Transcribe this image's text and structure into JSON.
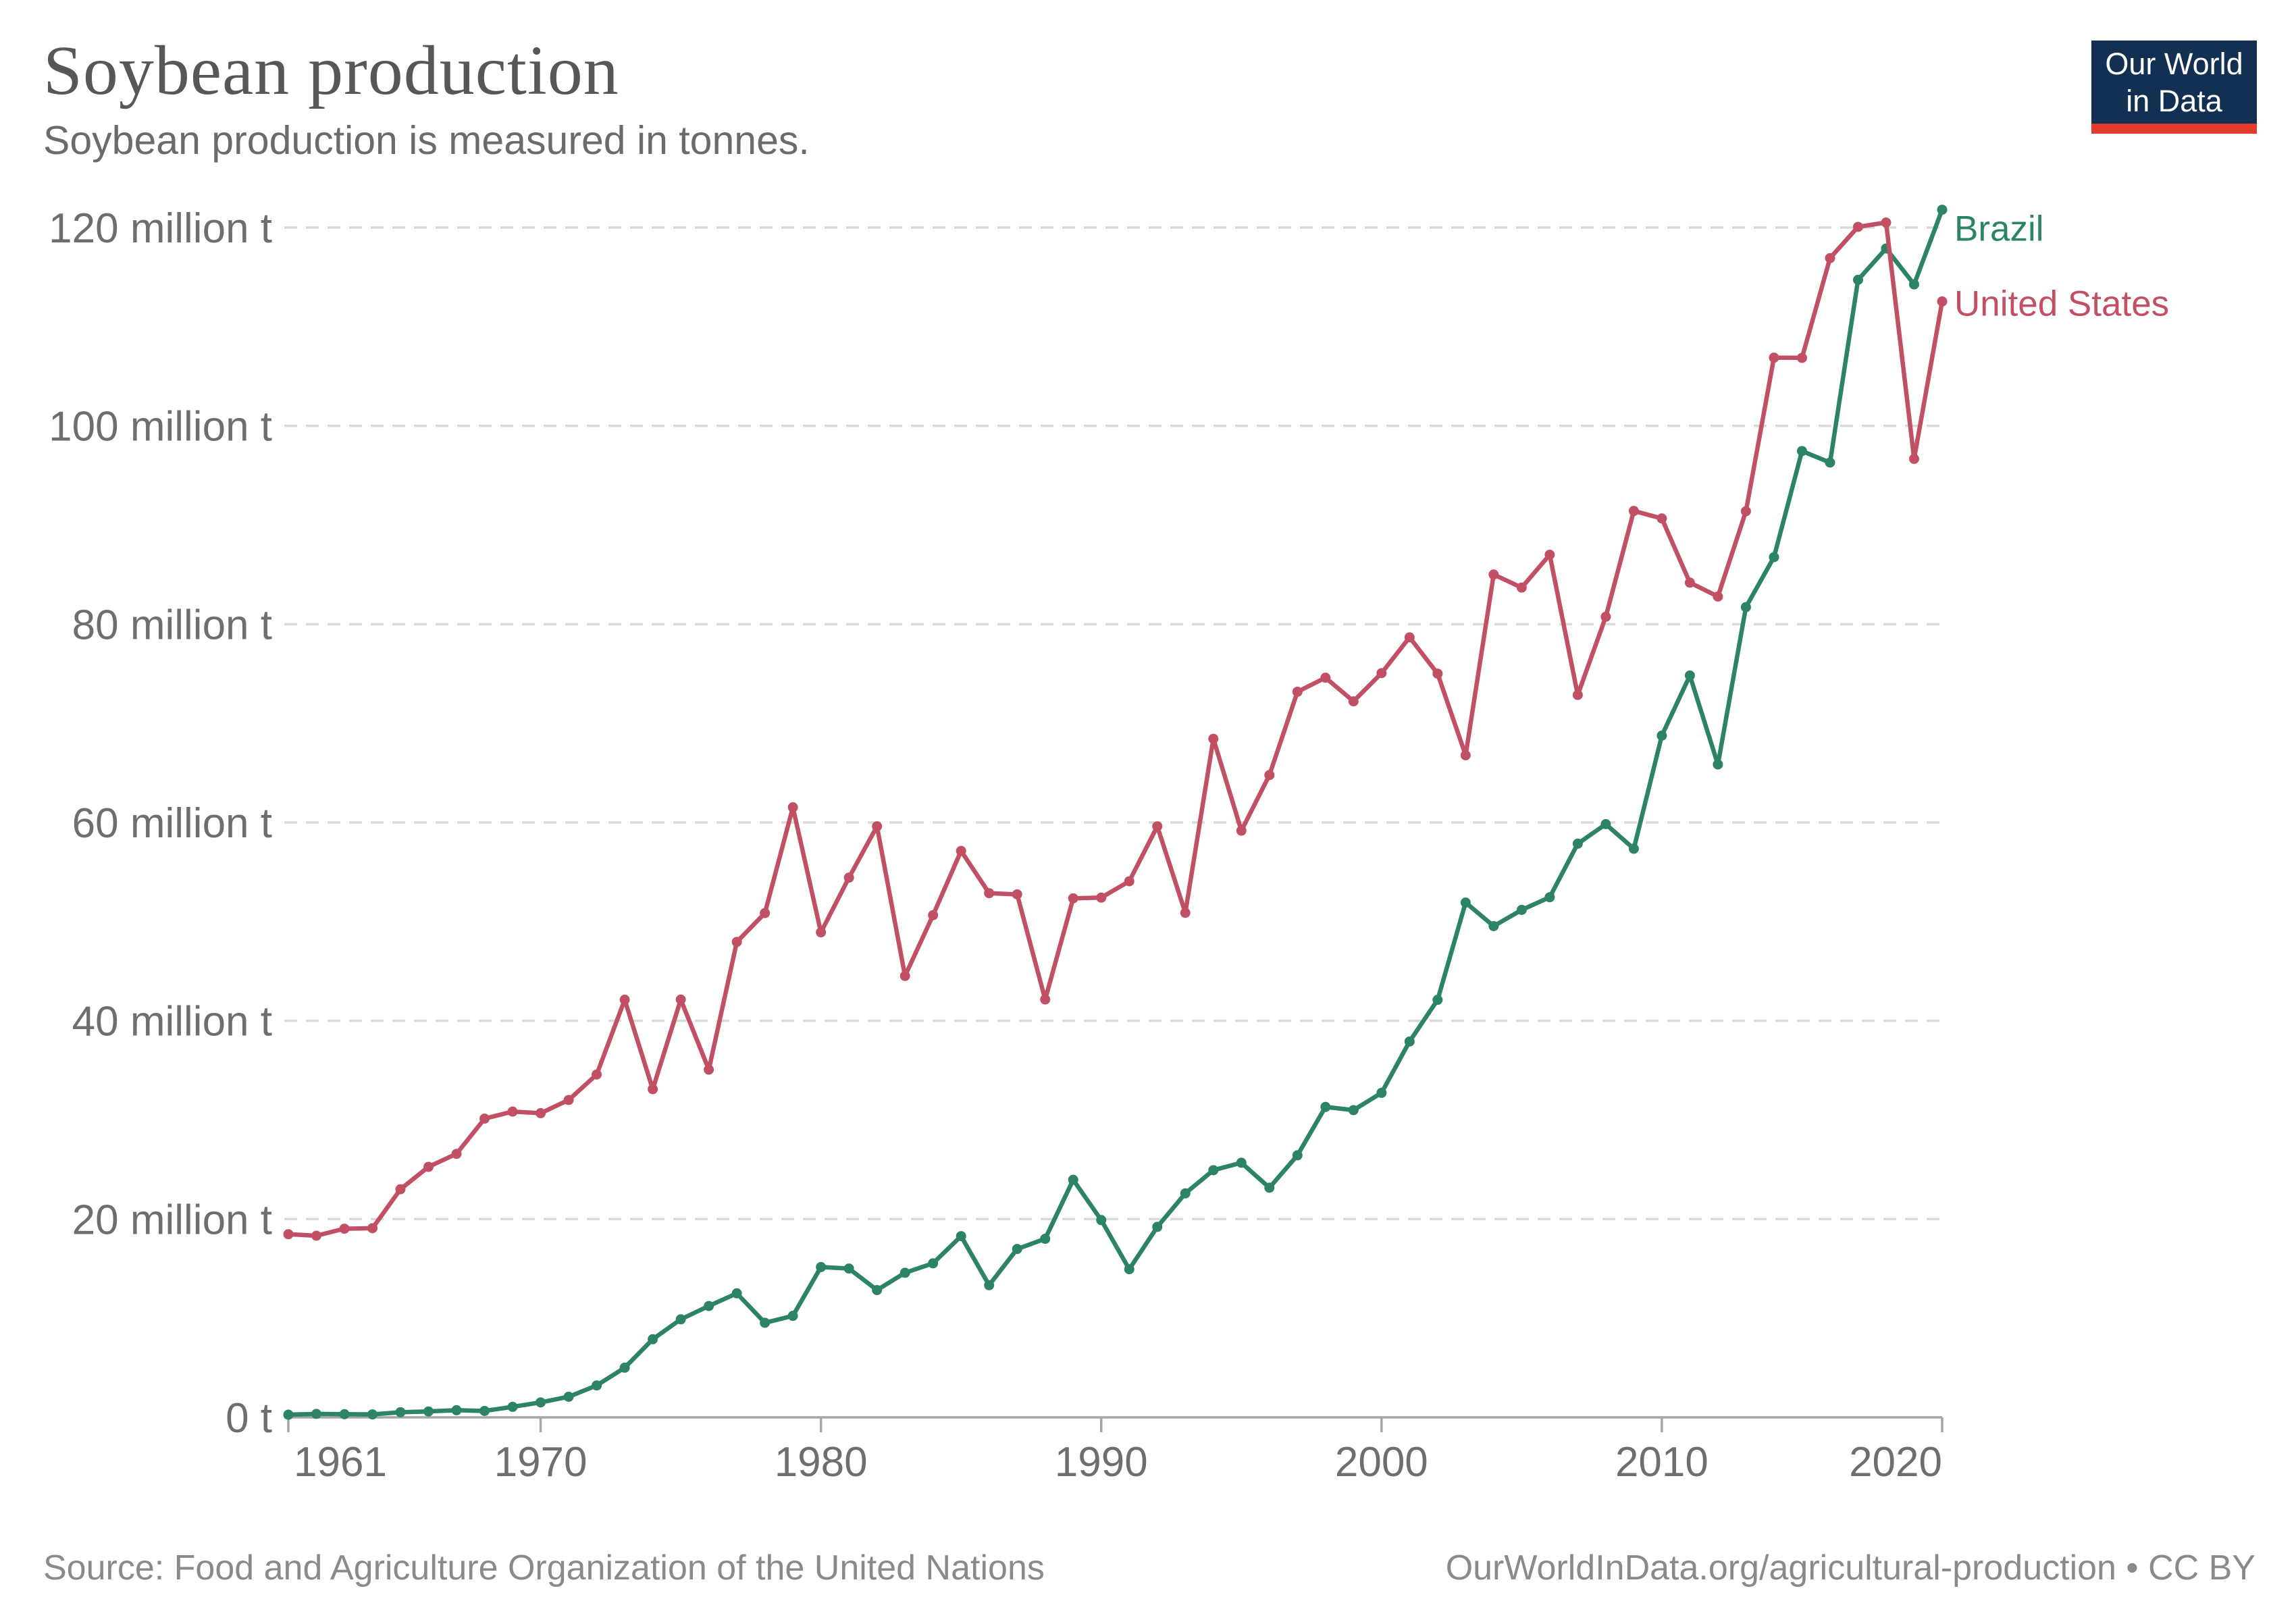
{
  "header": {
    "title": "Soybean production",
    "subtitle": "Soybean production is measured in tonnes."
  },
  "logo": {
    "line1": "Our World",
    "line2": "in Data",
    "bg_color": "#132F52",
    "bar_color": "#E23B2A"
  },
  "footer": {
    "source": "Source: Food and Agriculture Organization of the United Nations",
    "link": "OurWorldInData.org/agricultural-production • CC BY"
  },
  "chart_data": {
    "type": "line",
    "title": "Soybean production",
    "unit": "tonnes",
    "xlim": [
      1961,
      2020
    ],
    "ylim": [
      0,
      120
    ],
    "grid": "dashed horizontal",
    "legend_position": "line-end-labels",
    "xticks": [
      1961,
      1970,
      1980,
      1990,
      2000,
      2010,
      2020
    ],
    "yticks": [
      0,
      20,
      40,
      60,
      80,
      100,
      120
    ],
    "ytick_labels": [
      "0 t",
      "20 million t",
      "40 million t",
      "60 million t",
      "80 million t",
      "100 million t",
      "120 million t"
    ],
    "x": [
      1961,
      1962,
      1963,
      1964,
      1965,
      1966,
      1967,
      1968,
      1969,
      1970,
      1971,
      1972,
      1973,
      1974,
      1975,
      1976,
      1977,
      1978,
      1979,
      1980,
      1981,
      1982,
      1983,
      1984,
      1985,
      1986,
      1987,
      1988,
      1989,
      1990,
      1991,
      1992,
      1993,
      1994,
      1995,
      1996,
      1997,
      1998,
      1999,
      2000,
      2001,
      2002,
      2003,
      2004,
      2005,
      2006,
      2007,
      2008,
      2009,
      2010,
      2011,
      2012,
      2013,
      2014,
      2015,
      2016,
      2017,
      2018,
      2019,
      2020
    ],
    "series": [
      {
        "name": "Brazil",
        "color": "#2C8465",
        "values": [
          0.27,
          0.35,
          0.32,
          0.3,
          0.52,
          0.6,
          0.72,
          0.65,
          1.06,
          1.51,
          2.08,
          3.22,
          5.01,
          7.88,
          9.89,
          11.23,
          12.51,
          9.54,
          10.24,
          15.16,
          15.01,
          12.84,
          14.58,
          15.54,
          18.28,
          13.33,
          16.98,
          18.01,
          23.96,
          19.9,
          14.94,
          19.21,
          22.59,
          24.93,
          25.68,
          23.16,
          26.43,
          31.31,
          30.99,
          32.73,
          37.91,
          42.11,
          51.92,
          49.55,
          51.18,
          52.46,
          57.86,
          59.83,
          57.35,
          68.76,
          74.82,
          65.85,
          81.72,
          86.76,
          97.46,
          96.3,
          114.73,
          117.89,
          114.27,
          121.8
        ]
      },
      {
        "name": "United States",
        "color": "#C15065",
        "values": [
          18.47,
          18.32,
          19.03,
          19.08,
          23.01,
          25.27,
          26.58,
          30.13,
          30.84,
          30.68,
          32.01,
          34.58,
          42.12,
          33.1,
          42.14,
          35.07,
          47.95,
          50.86,
          61.53,
          48.92,
          54.44,
          59.61,
          44.52,
          50.65,
          57.13,
          52.87,
          52.75,
          42.15,
          52.35,
          52.42,
          54.07,
          59.61,
          50.89,
          68.44,
          59.17,
          64.78,
          73.18,
          74.6,
          72.22,
          75.06,
          78.67,
          75.01,
          66.78,
          85.01,
          83.69,
          87.0,
          72.86,
          80.75,
          91.42,
          90.66,
          84.19,
          82.79,
          91.39,
          106.88,
          106.86,
          116.92,
          120.07,
          120.51,
          96.67,
          112.55
        ]
      }
    ]
  }
}
